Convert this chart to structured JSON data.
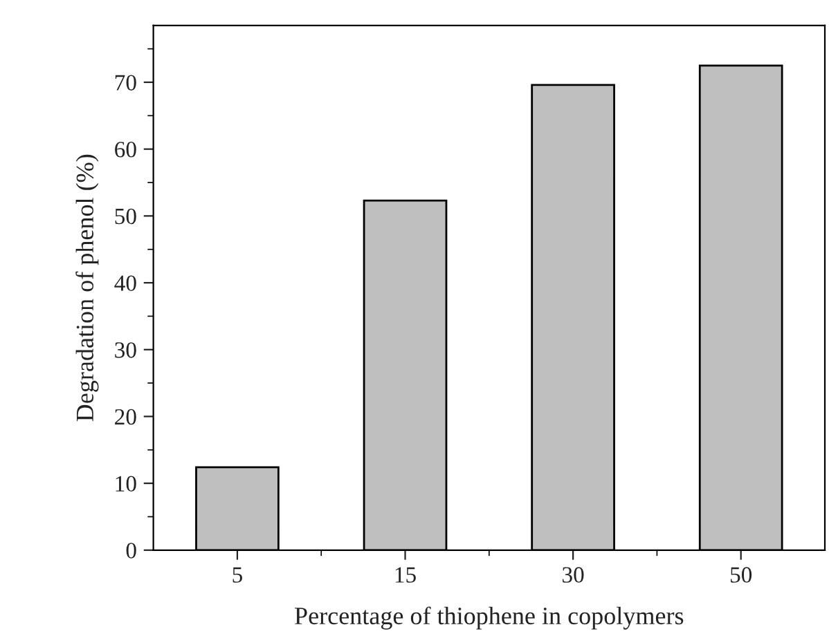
{
  "chart_data": {
    "type": "bar",
    "xlabel": "Percentage of thiophene in copolymers",
    "ylabel": "Degradation of phenol (%)",
    "categories": [
      "5",
      "15",
      "30",
      "50"
    ],
    "values": [
      12.4,
      52.3,
      69.6,
      72.5
    ],
    "color": "#bfbfbf",
    "ylim": [
      0,
      78.5
    ],
    "yticks": [
      0,
      10,
      20,
      30,
      40,
      50,
      60,
      70
    ],
    "grid": false
  }
}
